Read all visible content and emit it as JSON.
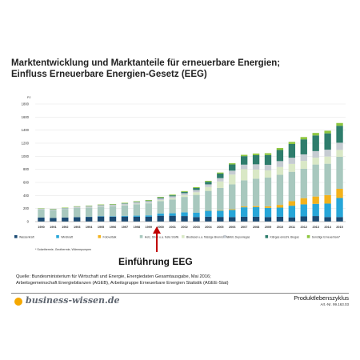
{
  "title_line1": "Marktentwicklung und Marktanteile für erneuerbare Energien;",
  "title_line2": "Einfluss Erneuerbare Energien-Gesetz (EEG)",
  "annotation": "Einführung EEG",
  "source_line1": "Quelle: Bundesministerium für Wirtschaft und Energie, Energiedaten Gesamtausgabe, Mai 2016;",
  "source_line2": "Arbeitsgemeinschaft Energiebilanzen (AGEB), Arbeitsgruppe Erneuerbare Energien Statistik (AGEE-Stat)",
  "brand": "business-wissen.de",
  "doc_title": "Produktlebenszyklus",
  "doc_number": "Art.-Nr. 99.163.03",
  "chart_data": {
    "type": "bar",
    "stacked": true,
    "ylabel": "PJ",
    "ylim": [
      0,
      1800
    ],
    "yticks": [
      0,
      200,
      400,
      600,
      800,
      1000,
      1200,
      1400,
      1600,
      1800
    ],
    "grid": true,
    "legend_position": "bottom",
    "footnote": "* Solarthermie, Geothermie, Wärmepumpen",
    "categories": [
      "1990",
      "1991",
      "1992",
      "1993",
      "1994",
      "1995",
      "1996",
      "1997",
      "1998",
      "1999",
      "2000",
      "2001",
      "2002",
      "2003",
      "2004",
      "2005",
      "2006",
      "2007",
      "2008",
      "2009",
      "2010",
      "2011",
      "2012",
      "2013",
      "2014",
      "2015"
    ],
    "series": [
      {
        "name": "Wasserkraft",
        "color": "#1a4a73",
        "values": [
          62,
          55,
          62,
          67,
          72,
          78,
          76,
          77,
          75,
          75,
          90,
          90,
          85,
          70,
          75,
          72,
          70,
          75,
          75,
          70,
          75,
          65,
          80,
          85,
          70,
          70
        ]
      },
      {
        "name": "Windkraft",
        "color": "#27a6d8",
        "values": [
          0,
          0,
          1,
          2,
          3,
          6,
          7,
          11,
          16,
          20,
          34,
          38,
          57,
          68,
          91,
          96,
          109,
          144,
          146,
          140,
          139,
          178,
          184,
          187,
          206,
          292
        ]
      },
      {
        "name": "Fotovoltaik",
        "color": "#f3b21b",
        "values": [
          0,
          0,
          0,
          0,
          0,
          0,
          0,
          0,
          0,
          0,
          0,
          1,
          1,
          1,
          4,
          7,
          11,
          13,
          16,
          24,
          42,
          70,
          95,
          112,
          130,
          140
        ]
      },
      {
        "name": "Holz, Stroh u.a. feste Stoffe",
        "color": "#a8c8be",
        "values": [
          125,
          120,
          128,
          140,
          138,
          145,
          150,
          160,
          175,
          185,
          190,
          210,
          235,
          270,
          300,
          340,
          380,
          400,
          420,
          440,
          460,
          450,
          450,
          490,
          480,
          490
        ]
      },
      {
        "name": "Biodiesel u.a. flüssige Brennstoffe",
        "color": "#d9e8c6",
        "values": [
          0,
          0,
          0,
          1,
          2,
          2,
          3,
          4,
          6,
          8,
          13,
          18,
          25,
          40,
          60,
          100,
          150,
          170,
          140,
          110,
          120,
          120,
          120,
          105,
          110,
          105
        ]
      },
      {
        "name": "Müll, Deponiegas",
        "color": "#c6ccd2",
        "values": [
          10,
          12,
          14,
          16,
          18,
          20,
          20,
          22,
          24,
          26,
          28,
          30,
          32,
          35,
          40,
          50,
          60,
          70,
          80,
          85,
          90,
          95,
          100,
          100,
          105,
          110
        ]
      },
      {
        "name": "Klärgas einschl. Biogas",
        "color": "#2e7d6c",
        "values": [
          2,
          3,
          3,
          3,
          4,
          4,
          5,
          6,
          7,
          8,
          12,
          15,
          20,
          30,
          40,
          70,
          95,
          130,
          140,
          150,
          170,
          210,
          230,
          240,
          250,
          260
        ]
      },
      {
        "name": "Sonstige Erneuerbare*",
        "color": "#8dc63f",
        "values": [
          5,
          5,
          6,
          6,
          6,
          7,
          7,
          8,
          8,
          9,
          10,
          11,
          12,
          13,
          14,
          16,
          18,
          20,
          25,
          28,
          30,
          32,
          35,
          38,
          40,
          42
        ]
      }
    ]
  }
}
